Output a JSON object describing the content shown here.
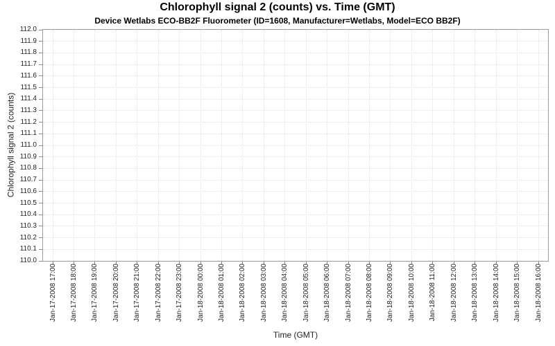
{
  "chart_data": {
    "type": "line",
    "title": "Chlorophyll signal 2 (counts) vs. Time (GMT)",
    "subtitle": "Device Wetlabs ECO-BB2F Fluorometer (ID=1608, Manufacturer=Wetlabs, Model=ECO BB2F)",
    "xlabel": "Time (GMT)",
    "ylabel": "Chlorophyll signal 2 (counts)",
    "ylim": [
      110.0,
      112.0
    ],
    "y_tick_step": 0.1,
    "y_ticks": [
      "112.0",
      "111.9",
      "111.8",
      "111.7",
      "111.6",
      "111.5",
      "111.4",
      "111.3",
      "111.2",
      "111.1",
      "111.0",
      "110.9",
      "110.8",
      "110.7",
      "110.6",
      "110.5",
      "110.4",
      "110.3",
      "110.2",
      "110.1",
      "110.0"
    ],
    "x_ticks": [
      "Jan-17-2008 17:00",
      "Jan-17-2008 18:00",
      "Jan-17-2008 19:00",
      "Jan-17-2008 20:00",
      "Jan-17-2008 21:00",
      "Jan-17-2008 22:00",
      "Jan-17-2008 23:00",
      "Jan-18-2008 00:00",
      "Jan-18-2008 01:00",
      "Jan-18-2008 02:00",
      "Jan-18-2008 03:00",
      "Jan-18-2008 04:00",
      "Jan-18-2008 05:00",
      "Jan-18-2008 06:00",
      "Jan-18-2008 07:00",
      "Jan-18-2008 08:00",
      "Jan-18-2008 09:00",
      "Jan-18-2008 10:00",
      "Jan-18-2008 11:00",
      "Jan-18-2008 12:00",
      "Jan-18-2008 13:00",
      "Jan-18-2008 14:00",
      "Jan-18-2008 15:00",
      "Jan-18-2008 16:00"
    ],
    "series": [],
    "grid": "dotted, both axes",
    "legend": "none"
  },
  "colors": {
    "background": "#ffffff",
    "gridline": "#e0e0e0",
    "axis_line": "#9b9b9b",
    "tick_mark": "#8a8a8a",
    "tick_text": "#222222",
    "title_text": "#000000"
  }
}
